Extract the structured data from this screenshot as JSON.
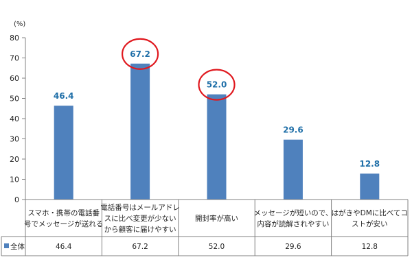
{
  "chart_data": {
    "type": "bar",
    "unit_label": "(%)",
    "categories": [
      [
        "スマホ・携帯の電話番",
        "号でメッセージが送れる"
      ],
      [
        "電話番号はメールアドレ",
        "スに比べ変更が少ない",
        "から顧客に届けやすい"
      ],
      [
        "開封率が高い"
      ],
      [
        "メッセージが短いので、",
        "内容が読解されやすい"
      ],
      [
        "はがきやDMに比べてコ",
        "ストが安い"
      ]
    ],
    "series": [
      {
        "name": "全体",
        "values": [
          46.4,
          67.2,
          52.0,
          29.6,
          12.8
        ]
      }
    ],
    "data_labels": [
      "46.4",
      "67.2",
      "52.0",
      "29.6",
      "12.8"
    ],
    "table_values": [
      "46.4",
      "67.2",
      "52.0",
      "29.6",
      "12.8"
    ],
    "highlighted": [
      false,
      true,
      true,
      false,
      false
    ],
    "ylim": [
      0,
      80
    ],
    "yticks": [
      0,
      10,
      20,
      30,
      40,
      50,
      60,
      70,
      80
    ],
    "grid": false,
    "legend": "data-table",
    "colors": {
      "bar": "#4f81bd",
      "data_label": "#1f6fa8",
      "highlight_circle": "#e0191f",
      "axis": "#808080",
      "text": "#222222"
    }
  }
}
